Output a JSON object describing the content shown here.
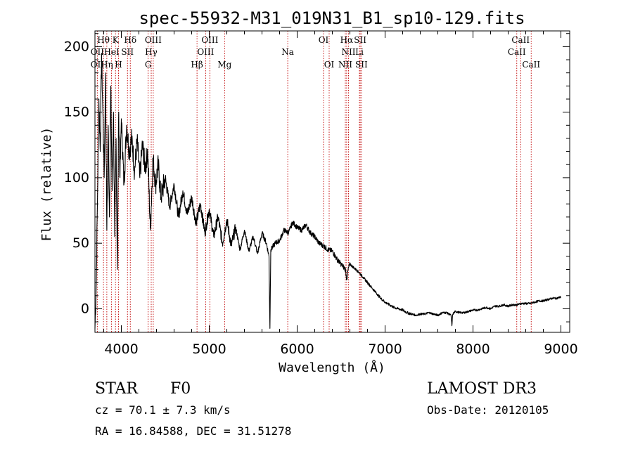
{
  "chart_data": {
    "type": "line",
    "title": "spec-55932-M31_019N31_B1_sp10-129.fits",
    "xlabel": "Wavelength (Å)",
    "ylabel": "Flux (relative)",
    "xlim": [
      3700,
      9100
    ],
    "ylim": [
      -18,
      212
    ],
    "x_ticks": [
      4000,
      5000,
      6000,
      7000,
      8000,
      9000
    ],
    "y_ticks": [
      0,
      50,
      100,
      150,
      200
    ],
    "series": [
      {
        "name": "spectrum",
        "x": [
          3700,
          3715,
          3730,
          3745,
          3760,
          3775,
          3790,
          3805,
          3820,
          3835,
          3850,
          3865,
          3880,
          3895,
          3910,
          3925,
          3940,
          3955,
          3970,
          3985,
          4000,
          4030,
          4060,
          4090,
          4120,
          4150,
          4180,
          4210,
          4240,
          4270,
          4300,
          4330,
          4360,
          4390,
          4420,
          4450,
          4500,
          4550,
          4600,
          4650,
          4700,
          4750,
          4800,
          4850,
          4900,
          4950,
          5000,
          5050,
          5100,
          5150,
          5200,
          5250,
          5300,
          5350,
          5400,
          5450,
          5500,
          5550,
          5600,
          5650,
          5680,
          5690,
          5700,
          5750,
          5800,
          5850,
          5900,
          5950,
          6000,
          6050,
          6100,
          6150,
          6200,
          6250,
          6300,
          6350,
          6400,
          6450,
          6500,
          6550,
          6563,
          6580,
          6600,
          6650,
          6700,
          6750,
          6800,
          6850,
          6900,
          6950,
          7000,
          7050,
          7100,
          7150,
          7200,
          7250,
          7300,
          7350,
          7400,
          7450,
          7500,
          7550,
          7600,
          7650,
          7700,
          7750,
          7760,
          7770,
          7800,
          7850,
          7900,
          7950,
          8000,
          8050,
          8100,
          8150,
          8200,
          8250,
          8300,
          8350,
          8400,
          8450,
          8500,
          8550,
          8600,
          8650,
          8700,
          8750,
          8800,
          8850,
          8900,
          8950,
          9000
        ],
        "values": [
          -15,
          20,
          90,
          160,
          120,
          195,
          150,
          100,
          180,
          60,
          140,
          70,
          170,
          90,
          150,
          55,
          130,
          30,
          150,
          100,
          145,
          95,
          140,
          120,
          130,
          105,
          128,
          100,
          125,
          108,
          120,
          60,
          115,
          95,
          110,
          85,
          100,
          78,
          95,
          70,
          90,
          72,
          85,
          65,
          80,
          58,
          76,
          55,
          70,
          50,
          68,
          48,
          62,
          45,
          60,
          44,
          55,
          42,
          58,
          50,
          40,
          -15,
          45,
          50,
          52,
          60,
          58,
          66,
          62,
          60,
          64,
          58,
          55,
          50,
          48,
          45,
          44,
          38,
          34,
          30,
          22,
          30,
          34,
          31,
          28,
          24,
          20,
          16,
          12,
          8,
          5,
          3,
          1,
          0,
          -1,
          -3,
          -4,
          -5,
          -4,
          -4,
          -3,
          -4,
          -5,
          -3,
          -3,
          -5,
          -13,
          -4,
          -2,
          -3,
          -3,
          -2,
          -1,
          -1,
          0,
          1,
          0,
          2,
          2,
          3,
          2,
          3,
          3,
          4,
          4,
          4,
          5,
          6,
          6,
          7,
          8,
          8,
          9
        ]
      }
    ],
    "line_ids": [
      {
        "label": "Hθ",
        "x": 3797,
        "row": 1
      },
      {
        "label": "K",
        "x": 3934,
        "row": 1
      },
      {
        "label": "Hδ",
        "x": 4102,
        "row": 1
      },
      {
        "label": "OIII",
        "x": 4363,
        "row": 1
      },
      {
        "label": "OIII",
        "x": 5007,
        "row": 1
      },
      {
        "label": "OI",
        "x": 6300,
        "row": 1
      },
      {
        "label": "Hα",
        "x": 6563,
        "row": 1
      },
      {
        "label": "SII",
        "x": 6717,
        "row": 1
      },
      {
        "label": "CaII",
        "x": 8542,
        "row": 1
      },
      {
        "label": "OII",
        "x": 3727,
        "row": 2
      },
      {
        "label": "HeI",
        "x": 3889,
        "row": 2
      },
      {
        "label": "SII",
        "x": 4070,
        "row": 2
      },
      {
        "label": "Hγ",
        "x": 4340,
        "row": 2
      },
      {
        "label": "OIII",
        "x": 4959,
        "row": 2
      },
      {
        "label": "Na",
        "x": 5893,
        "row": 2
      },
      {
        "label": "NII",
        "x": 6584,
        "row": 2
      },
      {
        "label": "Li",
        "x": 6708,
        "row": 2
      },
      {
        "label": "CaII",
        "x": 8498,
        "row": 2
      },
      {
        "label": "OII",
        "x": 3727,
        "row": 3
      },
      {
        "label": "Hη",
        "x": 3835,
        "row": 3
      },
      {
        "label": "H",
        "x": 3968,
        "row": 3
      },
      {
        "label": "G",
        "x": 4305,
        "row": 3
      },
      {
        "label": "Hβ",
        "x": 4861,
        "row": 3
      },
      {
        "label": "Mg",
        "x": 5175,
        "row": 3
      },
      {
        "label": "OI",
        "x": 6364,
        "row": 3
      },
      {
        "label": "NII",
        "x": 6548,
        "row": 3
      },
      {
        "label": "SII",
        "x": 6731,
        "row": 3
      },
      {
        "label": "CaII",
        "x": 8662,
        "row": 3
      }
    ],
    "line_color": "#c00000"
  },
  "info": {
    "class": "STAR",
    "subclass": "F0",
    "cz": "cz = 70.1 ± 7.3 km/s",
    "coords": "RA =  16.84588, DEC =  31.51278",
    "survey": "LAMOST DR3",
    "obs_date": "Obs-Date: 20120105"
  }
}
